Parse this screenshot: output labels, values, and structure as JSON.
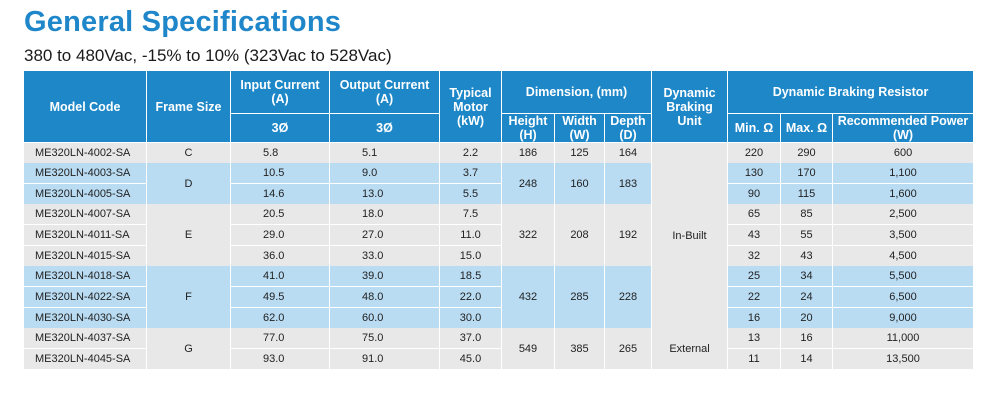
{
  "title": "General Specifications",
  "subtitle": "380 to 480Vac, -15% to 10% (323Vac to 528Vac)",
  "headers": {
    "model_code": "Model Code",
    "frame_size": "Frame Size",
    "input_current": "Input Current (A)",
    "output_current": "Output Current (A)",
    "phase": "3Ø",
    "typical_motor": "Typical Motor (kW)",
    "dimension": "Dimension, (mm)",
    "height": "Height (H)",
    "width": "Width (W)",
    "depth": "Depth (D)",
    "dynamic_braking_unit": "Dynamic Braking Unit",
    "dynamic_braking_resistor": "Dynamic Braking Resistor",
    "min_ohm": "Min. Ω",
    "max_ohm": "Max. Ω",
    "recommended_power": "Recommended Power (W)"
  },
  "rows": [
    {
      "model": "ME320LN-4002-SA",
      "input": "5.8",
      "output": "5.1",
      "motor": "2.2",
      "min": "220",
      "max": "290",
      "power": "600"
    },
    {
      "model": "ME320LN-4003-SA",
      "input": "10.5",
      "output": "9.0",
      "motor": "3.7",
      "min": "130",
      "max": "170",
      "power": "1,100"
    },
    {
      "model": "ME320LN-4005-SA",
      "input": "14.6",
      "output": "13.0",
      "motor": "5.5",
      "min": "90",
      "max": "115",
      "power": "1,600"
    },
    {
      "model": "ME320LN-4007-SA",
      "input": "20.5",
      "output": "18.0",
      "motor": "7.5",
      "min": "65",
      "max": "85",
      "power": "2,500"
    },
    {
      "model": "ME320LN-4011-SA",
      "input": "29.0",
      "output": "27.0",
      "motor": "11.0",
      "min": "43",
      "max": "55",
      "power": "3,500"
    },
    {
      "model": "ME320LN-4015-SA",
      "input": "36.0",
      "output": "33.0",
      "motor": "15.0",
      "min": "32",
      "max": "43",
      "power": "4,500"
    },
    {
      "model": "ME320LN-4018-SA",
      "input": "41.0",
      "output": "39.0",
      "motor": "18.5",
      "min": "25",
      "max": "34",
      "power": "5,500"
    },
    {
      "model": "ME320LN-4022-SA",
      "input": "49.5",
      "output": "48.0",
      "motor": "22.0",
      "min": "22",
      "max": "24",
      "power": "6,500"
    },
    {
      "model": "ME320LN-4030-SA",
      "input": "62.0",
      "output": "60.0",
      "motor": "30.0",
      "min": "16",
      "max": "20",
      "power": "9,000"
    },
    {
      "model": "ME320LN-4037-SA",
      "input": "77.0",
      "output": "75.0",
      "motor": "37.0",
      "min": "13",
      "max": "16",
      "power": "11,000"
    },
    {
      "model": "ME320LN-4045-SA",
      "input": "93.0",
      "output": "91.0",
      "motor": "45.0",
      "min": "11",
      "max": "14",
      "power": "13,500"
    }
  ],
  "frames": [
    {
      "frame": "C",
      "height": "186",
      "width": "125",
      "depth": "164"
    },
    {
      "frame": "D",
      "height": "248",
      "width": "160",
      "depth": "183"
    },
    {
      "frame": "E",
      "height": "322",
      "width": "208",
      "depth": "192"
    },
    {
      "frame": "F",
      "height": "432",
      "width": "285",
      "depth": "228"
    },
    {
      "frame": "G",
      "height": "549",
      "width": "385",
      "depth": "265"
    }
  ],
  "braking_units": {
    "in_built": "In-Built",
    "external": "External"
  },
  "colors": {
    "header_blue": "#1e87c8",
    "title_blue": "#1f86c9",
    "row_grey": "#e8e8e8",
    "row_blue": "#b9dcf3"
  }
}
